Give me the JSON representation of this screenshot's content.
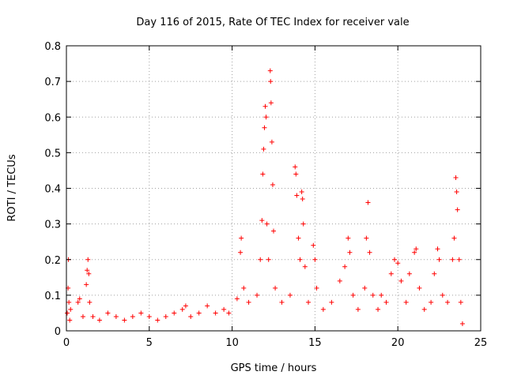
{
  "chart_data": {
    "type": "scatter",
    "title": "Day 116 of 2015, Rate Of TEC Index for receiver vale",
    "xlabel": "GPS time / hours",
    "ylabel": "ROTI / TECUs",
    "xlim": [
      0,
      25
    ],
    "ylim": [
      0,
      0.8
    ],
    "xticks": [
      0,
      5,
      10,
      15,
      20,
      25
    ],
    "yticks": [
      0,
      0.1,
      0.2,
      0.3,
      0.4,
      0.5,
      0.6,
      0.7,
      0.8
    ],
    "xtick_labels": [
      "0",
      "5",
      "10",
      "15",
      "20",
      "25"
    ],
    "ytick_labels": [
      "0",
      "0.1",
      "0.2",
      "0.3",
      "0.4",
      "0.5",
      "0.6",
      "0.7",
      "0.8"
    ],
    "grid": true,
    "marker": "+",
    "color": "#ff0000",
    "series": [
      {
        "name": "ROTI",
        "points": [
          [
            0.05,
            0.05
          ],
          [
            0.1,
            0.12
          ],
          [
            0.12,
            0.2
          ],
          [
            0.15,
            0.08
          ],
          [
            0.2,
            0.03
          ],
          [
            0.25,
            0.06
          ],
          [
            0.7,
            0.08
          ],
          [
            0.8,
            0.09
          ],
          [
            1.0,
            0.04
          ],
          [
            1.2,
            0.13
          ],
          [
            1.25,
            0.17
          ],
          [
            1.3,
            0.2
          ],
          [
            1.35,
            0.16
          ],
          [
            1.4,
            0.08
          ],
          [
            1.6,
            0.04
          ],
          [
            2.0,
            0.03
          ],
          [
            2.5,
            0.05
          ],
          [
            3.0,
            0.04
          ],
          [
            3.5,
            0.03
          ],
          [
            4.0,
            0.04
          ],
          [
            4.5,
            0.05
          ],
          [
            5.0,
            0.04
          ],
          [
            5.5,
            0.03
          ],
          [
            6.0,
            0.04
          ],
          [
            6.5,
            0.05
          ],
          [
            7.0,
            0.06
          ],
          [
            7.2,
            0.07
          ],
          [
            7.5,
            0.04
          ],
          [
            8.0,
            0.05
          ],
          [
            8.5,
            0.07
          ],
          [
            9.0,
            0.05
          ],
          [
            9.5,
            0.06
          ],
          [
            9.8,
            0.05
          ],
          [
            10.3,
            0.09
          ],
          [
            10.5,
            0.22
          ],
          [
            10.55,
            0.26
          ],
          [
            10.7,
            0.12
          ],
          [
            11.0,
            0.08
          ],
          [
            11.5,
            0.1
          ],
          [
            11.7,
            0.2
          ],
          [
            11.8,
            0.31
          ],
          [
            11.85,
            0.44
          ],
          [
            11.9,
            0.51
          ],
          [
            11.95,
            0.57
          ],
          [
            12.0,
            0.63
          ],
          [
            12.05,
            0.6
          ],
          [
            12.1,
            0.3
          ],
          [
            12.2,
            0.2
          ],
          [
            12.3,
            0.73
          ],
          [
            12.32,
            0.7
          ],
          [
            12.35,
            0.64
          ],
          [
            12.4,
            0.53
          ],
          [
            12.45,
            0.41
          ],
          [
            12.5,
            0.28
          ],
          [
            12.6,
            0.12
          ],
          [
            13.0,
            0.08
          ],
          [
            13.5,
            0.1
          ],
          [
            13.8,
            0.46
          ],
          [
            13.85,
            0.44
          ],
          [
            13.9,
            0.38
          ],
          [
            14.0,
            0.26
          ],
          [
            14.1,
            0.2
          ],
          [
            14.2,
            0.39
          ],
          [
            14.25,
            0.37
          ],
          [
            14.3,
            0.3
          ],
          [
            14.4,
            0.18
          ],
          [
            14.6,
            0.08
          ],
          [
            14.9,
            0.24
          ],
          [
            15.0,
            0.2
          ],
          [
            15.1,
            0.12
          ],
          [
            15.5,
            0.06
          ],
          [
            16.0,
            0.08
          ],
          [
            16.5,
            0.14
          ],
          [
            16.8,
            0.18
          ],
          [
            17.0,
            0.26
          ],
          [
            17.1,
            0.22
          ],
          [
            17.3,
            0.1
          ],
          [
            17.6,
            0.06
          ],
          [
            18.0,
            0.12
          ],
          [
            18.1,
            0.26
          ],
          [
            18.2,
            0.36
          ],
          [
            18.3,
            0.22
          ],
          [
            18.5,
            0.1
          ],
          [
            18.8,
            0.06
          ],
          [
            19.0,
            0.1
          ],
          [
            19.3,
            0.08
          ],
          [
            19.6,
            0.16
          ],
          [
            19.8,
            0.2
          ],
          [
            20.0,
            0.19
          ],
          [
            20.2,
            0.14
          ],
          [
            20.5,
            0.08
          ],
          [
            20.7,
            0.16
          ],
          [
            21.0,
            0.22
          ],
          [
            21.1,
            0.23
          ],
          [
            21.3,
            0.12
          ],
          [
            21.6,
            0.06
          ],
          [
            22.0,
            0.08
          ],
          [
            22.2,
            0.16
          ],
          [
            22.4,
            0.23
          ],
          [
            22.5,
            0.2
          ],
          [
            22.7,
            0.1
          ],
          [
            23.0,
            0.08
          ],
          [
            23.3,
            0.2
          ],
          [
            23.4,
            0.26
          ],
          [
            23.5,
            0.43
          ],
          [
            23.55,
            0.39
          ],
          [
            23.6,
            0.34
          ],
          [
            23.7,
            0.2
          ],
          [
            23.8,
            0.08
          ],
          [
            23.9,
            0.02
          ]
        ]
      }
    ]
  }
}
